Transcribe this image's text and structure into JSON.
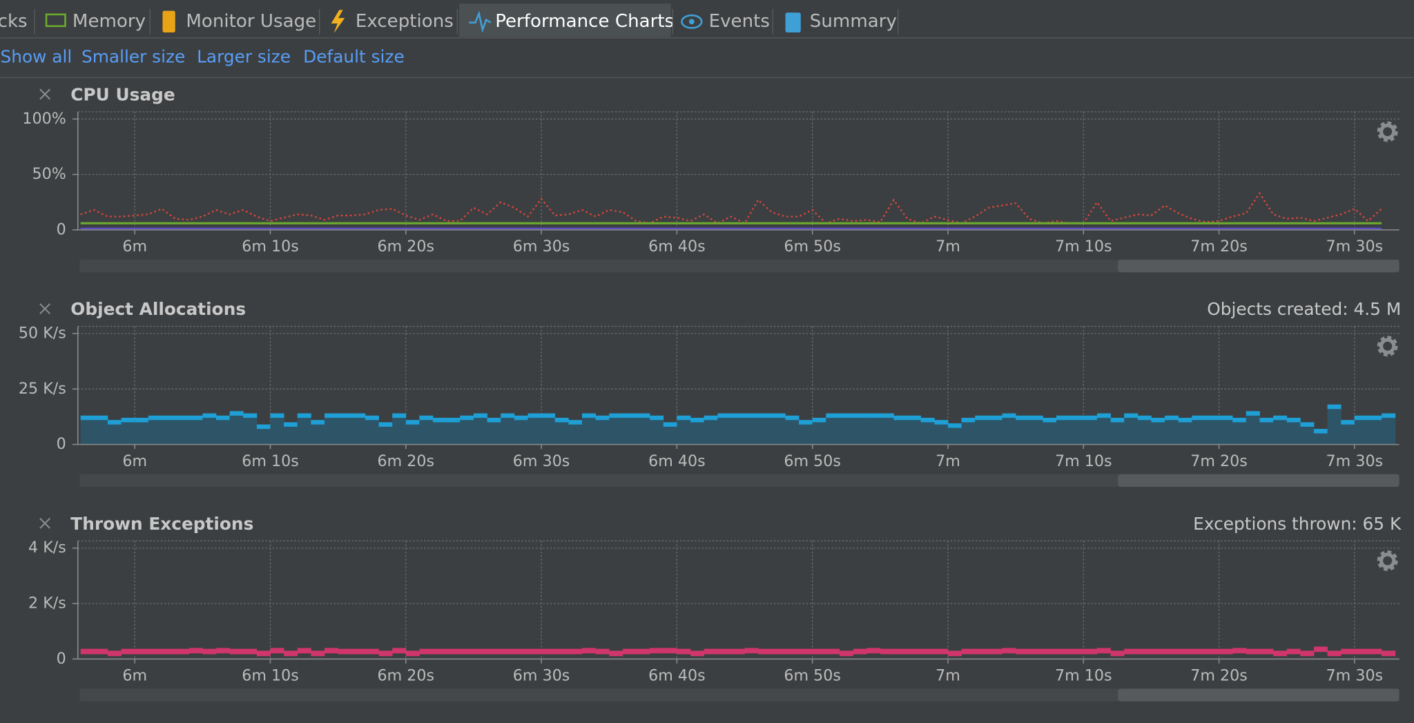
{
  "tabs": [
    "cks",
    "Memory",
    "Monitor Usage",
    "Exceptions",
    "Performance Charts",
    "Events",
    "Summary"
  ],
  "links": [
    "Show all",
    "Smaller size",
    "Larger size",
    "Default size"
  ],
  "chart_data": [
    {
      "type": "line",
      "title": "CPU Usage",
      "x": [
        356,
        357,
        358,
        359,
        360,
        361,
        362,
        363,
        364,
        365,
        366,
        367,
        368,
        369,
        370,
        371,
        372,
        373,
        374,
        375,
        376,
        377,
        378,
        379,
        380,
        381,
        382,
        383,
        384,
        385,
        386,
        387,
        388,
        389,
        390,
        391,
        392,
        393,
        394,
        395,
        396,
        397,
        398,
        399,
        400,
        401,
        402,
        403,
        404,
        405,
        406,
        407,
        408,
        409,
        410,
        411,
        412,
        413,
        414,
        415,
        416,
        417,
        418,
        419,
        420,
        421,
        422,
        423,
        424,
        425,
        426,
        427,
        428,
        429,
        430,
        431,
        432,
        433,
        434,
        435,
        436,
        437,
        438,
        439,
        440,
        441,
        442,
        443,
        444,
        445,
        446,
        447,
        448,
        449,
        450,
        451,
        452
      ],
      "series": [
        {
          "color": "#d9463c",
          "line_style": "dotted",
          "values": [
            14,
            18,
            12,
            12,
            13,
            14,
            19,
            10,
            9,
            12,
            18,
            14,
            18,
            12,
            8,
            11,
            14,
            13,
            9,
            13,
            13,
            14,
            18,
            19,
            13,
            9,
            14,
            8,
            8,
            20,
            14,
            25,
            20,
            12,
            28,
            13,
            14,
            18,
            12,
            18,
            16,
            8,
            6,
            12,
            11,
            8,
            14,
            6,
            12,
            6,
            27,
            16,
            12,
            12,
            18,
            6,
            10,
            8,
            9,
            7,
            27,
            10,
            6,
            12,
            9,
            6,
            12,
            20,
            22,
            24,
            10,
            6,
            8,
            6,
            6,
            25,
            8,
            11,
            14,
            13,
            22,
            15,
            10,
            7,
            8,
            12,
            15,
            33,
            14,
            10,
            11,
            8,
            11,
            14,
            19,
            8,
            19
          ]
        },
        {
          "color": "#6aaa2e",
          "line_style": "solid",
          "values": [
            6,
            6,
            6,
            6,
            6,
            6,
            6,
            6,
            6,
            6,
            6,
            6,
            6,
            6,
            6,
            6,
            6,
            6,
            6,
            6,
            6,
            6,
            6,
            6,
            6,
            6,
            6,
            6,
            6,
            6,
            6,
            6,
            6,
            6,
            6,
            6,
            6,
            6,
            6,
            6,
            6,
            6,
            6,
            6,
            6,
            6,
            6,
            6,
            6,
            6,
            6,
            6,
            6,
            6,
            6,
            6,
            6,
            6,
            6,
            6,
            6,
            6,
            6,
            6,
            6,
            6,
            6,
            6,
            6,
            6,
            6,
            6,
            6,
            6,
            6,
            6,
            6,
            6,
            6,
            6,
            6,
            6,
            6,
            6,
            6,
            6,
            6,
            6,
            6,
            6,
            6,
            6,
            6,
            6,
            6,
            6,
            6
          ]
        },
        {
          "color": "#5b4fc0",
          "line_style": "solid",
          "values": [
            1,
            1,
            1,
            1,
            1,
            1,
            1,
            1,
            1,
            1,
            1,
            1,
            1,
            1,
            1,
            1,
            1,
            1,
            1,
            1,
            1,
            1,
            1,
            1,
            1,
            1,
            1,
            1,
            1,
            1,
            1,
            1,
            1,
            1,
            1,
            1,
            1,
            1,
            1,
            1,
            1,
            1,
            1,
            1,
            1,
            1,
            1,
            1,
            1,
            1,
            1,
            1,
            1,
            1,
            1,
            1,
            1,
            1,
            1,
            1,
            1,
            1,
            1,
            1,
            1,
            1,
            1,
            1,
            1,
            1,
            1,
            1,
            1,
            1,
            1,
            1,
            1,
            1,
            1,
            1,
            1,
            1,
            1,
            1,
            1,
            1,
            1,
            1,
            1,
            1,
            1,
            1,
            1,
            1,
            1,
            1,
            1
          ]
        }
      ],
      "xlim": [
        355.8,
        453.3
      ],
      "xticks": [
        {
          "value": 360,
          "label": "6m"
        },
        {
          "value": 370,
          "label": "6m 10s"
        },
        {
          "value": 380,
          "label": "6m 20s"
        },
        {
          "value": 390,
          "label": "6m 30s"
        },
        {
          "value": 400,
          "label": "6m 40s"
        },
        {
          "value": 410,
          "label": "6m 50s"
        },
        {
          "value": 420,
          "label": "7m"
        },
        {
          "value": 430,
          "label": "7m 10s"
        },
        {
          "value": 440,
          "label": "7m 20s"
        },
        {
          "value": 450,
          "label": "7m 30s"
        }
      ],
      "ylim": [
        0,
        100
      ],
      "yticks": [
        0,
        {
          "value": 50,
          "label": "50%"
        },
        {
          "value": 100,
          "label": "100%"
        }
      ],
      "grid": true
    },
    {
      "type": "step",
      "title": "Object Allocations",
      "summary": "Objects created: 4.5 M",
      "x": [
        356,
        357,
        358,
        359,
        360,
        361,
        362,
        363,
        364,
        365,
        366,
        367,
        368,
        369,
        370,
        371,
        372,
        373,
        374,
        375,
        376,
        377,
        378,
        379,
        380,
        381,
        382,
        383,
        384,
        385,
        386,
        387,
        388,
        389,
        390,
        391,
        392,
        393,
        394,
        395,
        396,
        397,
        398,
        399,
        400,
        401,
        402,
        403,
        404,
        405,
        406,
        407,
        408,
        409,
        410,
        411,
        412,
        413,
        414,
        415,
        416,
        417,
        418,
        419,
        420,
        421,
        422,
        423,
        424,
        425,
        426,
        427,
        428,
        429,
        430,
        431,
        432,
        433,
        434,
        435,
        436,
        437,
        438,
        439,
        440,
        441,
        442,
        443,
        444,
        445,
        446,
        447,
        448,
        449,
        450,
        451,
        452
      ],
      "series": [
        {
          "color": "#1e9fd6",
          "fill": "#2e5567",
          "values": [
            12,
            12,
            10,
            11,
            11,
            12,
            12,
            12,
            12,
            13,
            12,
            14,
            13,
            8,
            13,
            9,
            13,
            10,
            13,
            13,
            13,
            12,
            9,
            13,
            10,
            12,
            11,
            11,
            12,
            13,
            11,
            13,
            12,
            13,
            13,
            11,
            10,
            13,
            12,
            13,
            13,
            13,
            12,
            9,
            12,
            11,
            12,
            13,
            13,
            13,
            13,
            13,
            12,
            10,
            11,
            13,
            13,
            13,
            13,
            13,
            12,
            12,
            11,
            10,
            8.5,
            11,
            12,
            12,
            13,
            12,
            12,
            11,
            12,
            12,
            12,
            13,
            11,
            13,
            12,
            11,
            12,
            11,
            12,
            12,
            12,
            11,
            14,
            11,
            12,
            11,
            9,
            6,
            17,
            10,
            12,
            12,
            13
          ]
        }
      ],
      "xlim": [
        355.8,
        453.3
      ],
      "xticks": [
        {
          "value": 360,
          "label": "6m"
        },
        {
          "value": 370,
          "label": "6m 10s"
        },
        {
          "value": 380,
          "label": "6m 20s"
        },
        {
          "value": 390,
          "label": "6m 30s"
        },
        {
          "value": 400,
          "label": "6m 40s"
        },
        {
          "value": 410,
          "label": "6m 50s"
        },
        {
          "value": 420,
          "label": "7m"
        },
        {
          "value": 430,
          "label": "7m 10s"
        },
        {
          "value": 440,
          "label": "7m 20s"
        },
        {
          "value": 450,
          "label": "7m 30s"
        }
      ],
      "ylim": [
        0,
        50
      ],
      "yticks": [
        0,
        {
          "value": 25,
          "label": "25 K/s"
        },
        {
          "value": 50,
          "label": "50 K/s"
        }
      ],
      "grid": true
    },
    {
      "type": "step",
      "title": "Thrown Exceptions",
      "summary": "Exceptions thrown: 65 K",
      "x": [
        356,
        357,
        358,
        359,
        360,
        361,
        362,
        363,
        364,
        365,
        366,
        367,
        368,
        369,
        370,
        371,
        372,
        373,
        374,
        375,
        376,
        377,
        378,
        379,
        380,
        381,
        382,
        383,
        384,
        385,
        386,
        387,
        388,
        389,
        390,
        391,
        392,
        393,
        394,
        395,
        396,
        397,
        398,
        399,
        400,
        401,
        402,
        403,
        404,
        405,
        406,
        407,
        408,
        409,
        410,
        411,
        412,
        413,
        414,
        415,
        416,
        417,
        418,
        419,
        420,
        421,
        422,
        423,
        424,
        425,
        426,
        427,
        428,
        429,
        430,
        431,
        432,
        433,
        434,
        435,
        436,
        437,
        438,
        439,
        440,
        441,
        442,
        443,
        444,
        445,
        446,
        447,
        448,
        449,
        450,
        451,
        452
      ],
      "series": [
        {
          "color": "#d0366b",
          "values": [
            0.27,
            0.27,
            0.2,
            0.27,
            0.27,
            0.27,
            0.27,
            0.27,
            0.3,
            0.27,
            0.3,
            0.27,
            0.27,
            0.2,
            0.3,
            0.2,
            0.3,
            0.2,
            0.3,
            0.27,
            0.27,
            0.27,
            0.2,
            0.3,
            0.2,
            0.27,
            0.27,
            0.27,
            0.27,
            0.27,
            0.27,
            0.27,
            0.27,
            0.27,
            0.27,
            0.27,
            0.27,
            0.3,
            0.27,
            0.2,
            0.27,
            0.27,
            0.3,
            0.3,
            0.27,
            0.2,
            0.27,
            0.27,
            0.27,
            0.3,
            0.27,
            0.27,
            0.27,
            0.27,
            0.27,
            0.27,
            0.2,
            0.27,
            0.3,
            0.27,
            0.27,
            0.27,
            0.27,
            0.27,
            0.2,
            0.27,
            0.27,
            0.27,
            0.3,
            0.27,
            0.27,
            0.27,
            0.27,
            0.27,
            0.27,
            0.3,
            0.2,
            0.27,
            0.27,
            0.27,
            0.27,
            0.27,
            0.27,
            0.27,
            0.27,
            0.3,
            0.27,
            0.27,
            0.2,
            0.27,
            0.2,
            0.35,
            0.2,
            0.27,
            0.27,
            0.27,
            0.2
          ]
        }
      ],
      "xlim": [
        355.8,
        453.3
      ],
      "xticks": [
        {
          "value": 360,
          "label": "6m"
        },
        {
          "value": 370,
          "label": "6m 10s"
        },
        {
          "value": 380,
          "label": "6m 20s"
        },
        {
          "value": 390,
          "label": "6m 30s"
        },
        {
          "value": 400,
          "label": "6m 40s"
        },
        {
          "value": 410,
          "label": "6m 50s"
        },
        {
          "value": 420,
          "label": "7m"
        },
        {
          "value": 430,
          "label": "7m 10s"
        },
        {
          "value": 440,
          "label": "7m 20s"
        },
        {
          "value": 450,
          "label": "7m 30s"
        }
      ],
      "ylim": [
        0,
        4
      ],
      "yticks": [
        0,
        {
          "value": 2,
          "label": "2 K/s"
        },
        {
          "value": 4,
          "label": "4 K/s"
        }
      ],
      "grid": true
    }
  ]
}
